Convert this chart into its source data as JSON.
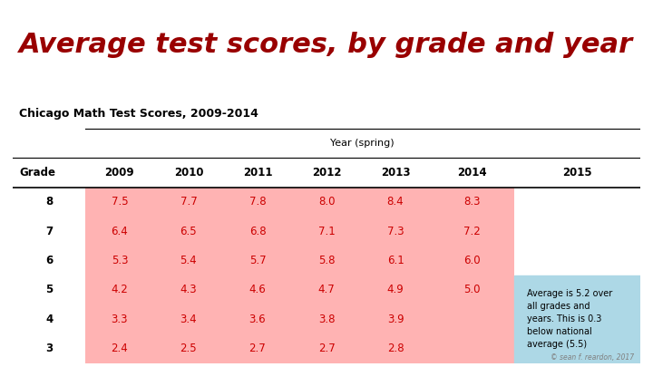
{
  "title": "Average test scores, by grade and year",
  "title_color": "#990000",
  "table_title": "Chicago Math Test Scores, 2009-2014",
  "col_header_top": "Year (spring)",
  "col_headers": [
    "Grade",
    "2009",
    "2010",
    "2011",
    "2012",
    "2013",
    "2014",
    "2015"
  ],
  "row_labels": [
    "8",
    "7",
    "6",
    "5",
    "4",
    "3"
  ],
  "data": [
    [
      7.5,
      7.7,
      7.8,
      8.0,
      8.4,
      8.3,
      null
    ],
    [
      6.4,
      6.5,
      6.8,
      7.1,
      7.3,
      7.2,
      null
    ],
    [
      5.3,
      5.4,
      5.7,
      5.8,
      6.1,
      6.0,
      null
    ],
    [
      4.2,
      4.3,
      4.6,
      4.7,
      4.9,
      5.0,
      null
    ],
    [
      3.3,
      3.4,
      3.6,
      3.8,
      3.9,
      null,
      null
    ],
    [
      2.4,
      2.5,
      2.7,
      2.7,
      2.8,
      null,
      null
    ]
  ],
  "data_color": "#cc0000",
  "header_color": "#000000",
  "cell_bg_pink": "#ffb3b3",
  "cell_bg_white": "#ffffff",
  "annotation_bg": "#add8e6",
  "annotation_text": "Average is 5.2 over\nall grades and\nyears. This is 0.3\nbelow national\naverage (5.5)",
  "annotation_color": "#000000",
  "credit": "© sean f. reardon, 2017",
  "background_color": "#ffffff"
}
